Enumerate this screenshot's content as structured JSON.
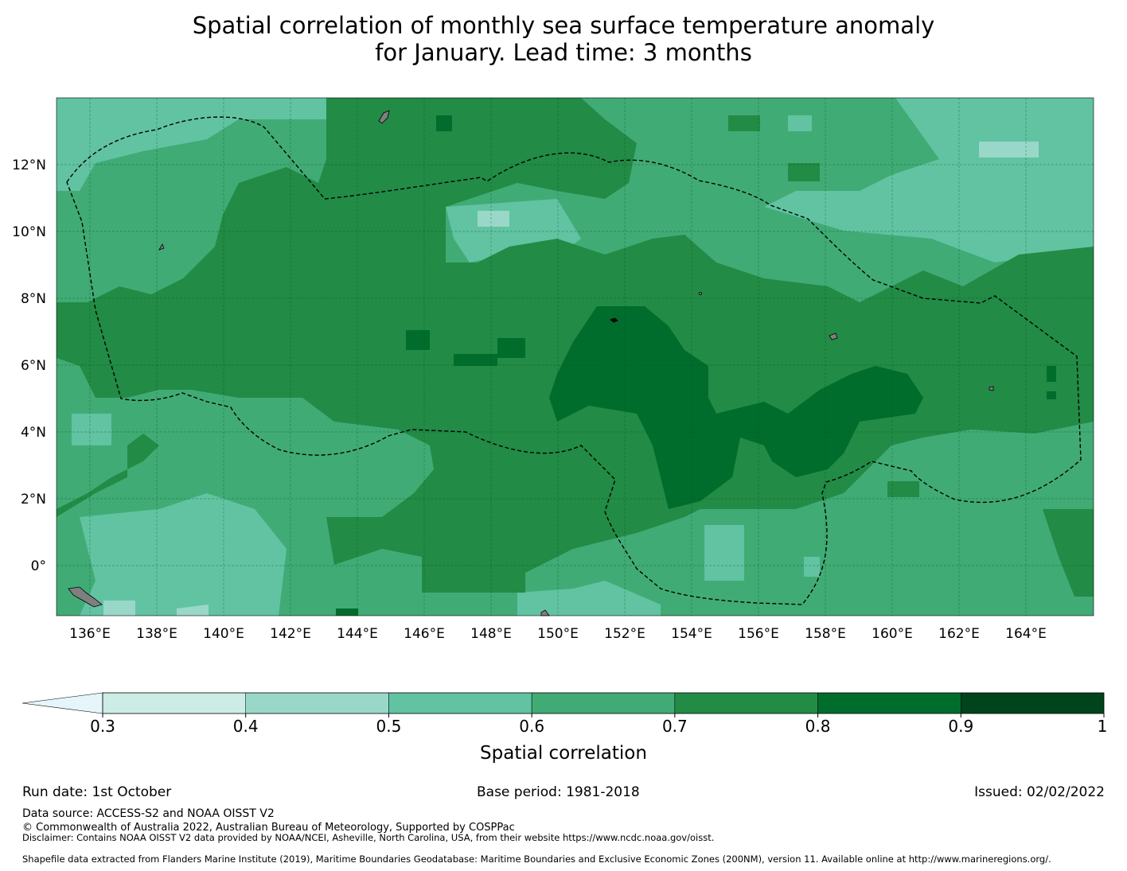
{
  "title": {
    "line1": "Spatial correlation of monthly sea surface temperature anomaly",
    "line2": "for January. Lead time: 3 months"
  },
  "map": {
    "lon_range": [
      135,
      166
    ],
    "lat_range": [
      -1.5,
      14
    ],
    "x_ticks": [
      "136°E",
      "138°E",
      "140°E",
      "142°E",
      "144°E",
      "146°E",
      "148°E",
      "150°E",
      "152°E",
      "154°E",
      "156°E",
      "158°E",
      "160°E",
      "162°E",
      "164°E"
    ],
    "y_ticks": [
      "12°N",
      "10°N",
      "8°N",
      "6°N",
      "4°N",
      "2°N",
      "0°"
    ],
    "colors": {
      "ocean_base": "#41ab75",
      "boundary": "#000000",
      "land": "#7f7f7f"
    },
    "regions": [
      {
        "name": "band-0.5-0.6",
        "level": 0.55,
        "color": "#61c3a2"
      },
      {
        "name": "band-0.6-0.7",
        "level": 0.65,
        "color": "#41ab75"
      },
      {
        "name": "band-0.7-0.8",
        "level": 0.75,
        "color": "#228b45"
      },
      {
        "name": "band-0.8-0.9",
        "level": 0.85,
        "color": "#006d2c"
      }
    ]
  },
  "colorbar": {
    "label": "Spatial correlation",
    "tick_labels": [
      "0.3",
      "0.4",
      "0.5",
      "0.6",
      "0.7",
      "0.8",
      "0.9",
      "1"
    ],
    "extend_color": "#e5f5f9",
    "bins": [
      {
        "min": 0.3,
        "max": 0.4,
        "color": "#ccece6"
      },
      {
        "min": 0.4,
        "max": 0.5,
        "color": "#99d8c9"
      },
      {
        "min": 0.5,
        "max": 0.6,
        "color": "#61c3a2"
      },
      {
        "min": 0.6,
        "max": 0.7,
        "color": "#41ab75"
      },
      {
        "min": 0.7,
        "max": 0.8,
        "color": "#228b45"
      },
      {
        "min": 0.8,
        "max": 0.9,
        "color": "#006d2c"
      },
      {
        "min": 0.9,
        "max": 1.0,
        "color": "#00441b"
      }
    ]
  },
  "footer": {
    "run_date": "Run date: 1st October",
    "base_period": "Base period: 1981-2018",
    "issued": "Issued: 02/02/2022",
    "data_source": "Data source: ACCESS-S2 and NOAA OISST V2",
    "copyright": "© Commonwealth of Australia 2022, Australian Bureau of Meteorology, Supported by COSPPac",
    "disclaimer": "Disclaimer: Contains NOAA OISST V2 data provided by NOAA/NCEI, Asheville, North Carolina, USA, from their website https://www.ncdc.noaa.gov/oisst.",
    "shapefile": "Shapefile data extracted from Flanders Marine Institute (2019), Maritime Boundaries Geodatabase: Maritime Boundaries and Exclusive Economic Zones (200NM), version 11. Available online at http://www.marineregions.org/."
  }
}
